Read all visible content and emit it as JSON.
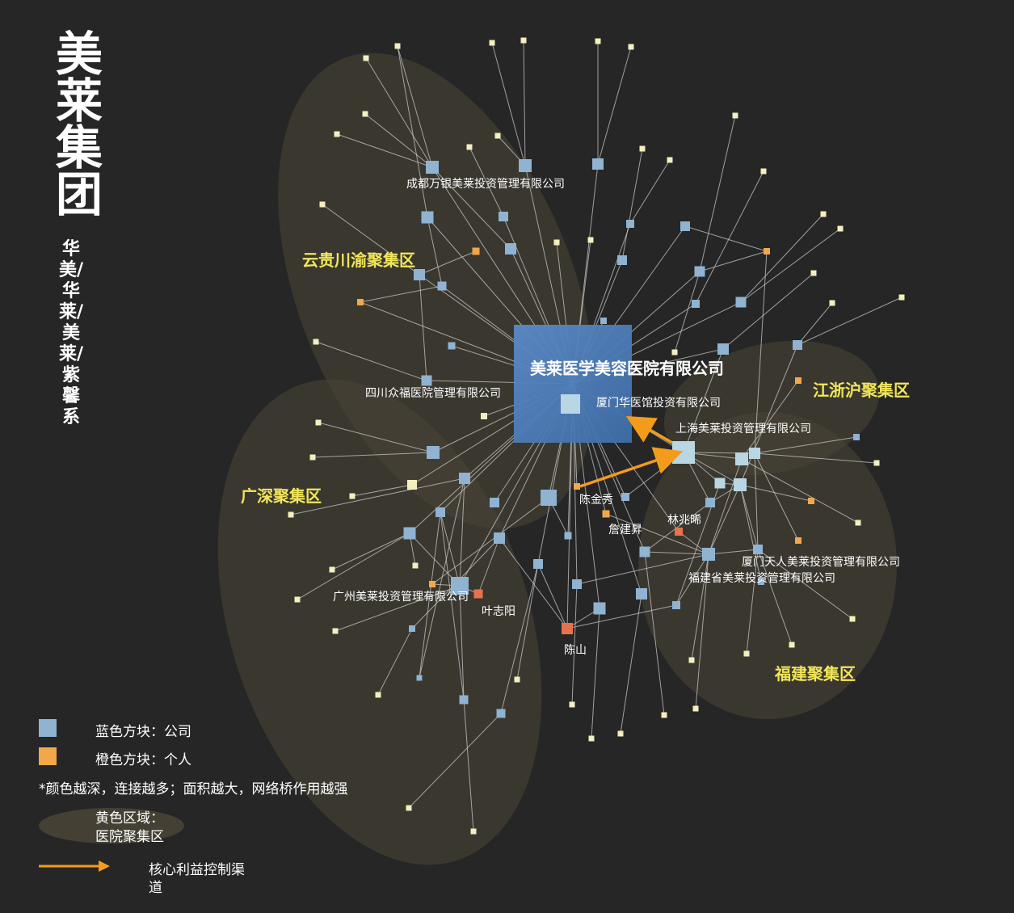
{
  "title": "美莱集团",
  "subtitle": "华美/华莱/美莱/紫馨系",
  "colors": {
    "background": "#262626",
    "company": "#8fb3d1",
    "company_light": "#b9d7e2",
    "person": "#f0a84a",
    "person_strong": "#e5744e",
    "leaf": "#f3efc0",
    "core": "#4f7fba",
    "arrow": "#f39c1c",
    "region": "#4a4536",
    "region_label": "#f1e65a"
  },
  "regions": [
    {
      "id": "yunnan",
      "label": "云贵川渝聚集区"
    },
    {
      "id": "guangshen",
      "label": "广深聚集区"
    },
    {
      "id": "jiangzhehu",
      "label": "江浙沪聚集区"
    },
    {
      "id": "fujian",
      "label": "福建聚集区"
    }
  ],
  "labels": {
    "core": "美莱医学美容医院有限公司",
    "xiamen_huayi": "厦门华医馆投资有限公司",
    "chengdu": "成都万银美莱投资管理有限公司",
    "sichuan": "四川众福医院管理有限公司",
    "shanghai": "上海美莱投资管理有限公司",
    "chenjinxiu": "陈金秀",
    "zhanjiansheng": "詹建昇",
    "linzhaoxi": "林兆晞",
    "xiamen_tianren": "厦门天人美莱投资管理有限公司",
    "fujian_co": "福建省美莱投资管理有限公司",
    "guangzhou": "广州美莱投资管理有限公司",
    "yezhiyang": "叶志阳",
    "chenshan": "陈山"
  },
  "legend": {
    "company": "蓝色方块：公司",
    "person": "橙色方块：个人",
    "note": "*颜色越深，连接越多；面积越大，网络桥作用越强",
    "region_line1": "黄色区域：",
    "region_line2": "医院聚集区",
    "arrow_line1": "核心利益控制渠",
    "arrow_line2": "道"
  }
}
